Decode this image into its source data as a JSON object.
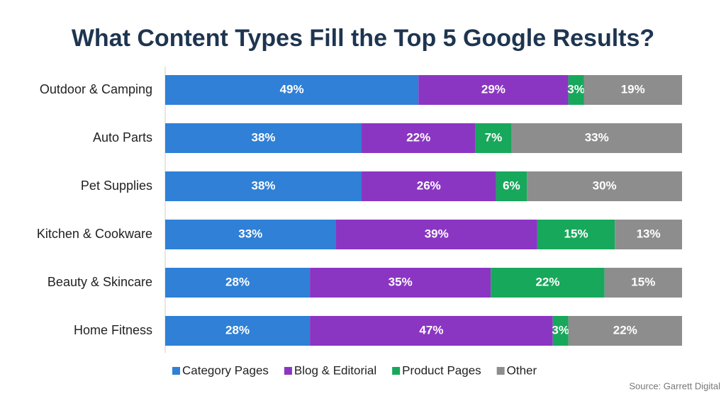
{
  "chart_data": {
    "type": "stacked-bar",
    "orientation": "horizontal",
    "title": "What Content Types Fill the Top 5 Google Results?",
    "categories": [
      "Outdoor & Camping",
      "Auto Parts",
      "Pet Supplies",
      "Kitchen & Cookware",
      "Beauty & Skincare",
      "Home Fitness"
    ],
    "xlim": [
      0,
      100
    ],
    "series": [
      {
        "name": "Category Pages",
        "color": "#2f80d6",
        "values": [
          49,
          38,
          38,
          33,
          28,
          28
        ],
        "value_labels": [
          "49%",
          "38%",
          "38%",
          "33%",
          "28%",
          "28%"
        ]
      },
      {
        "name": "Blog & Editorial",
        "color": "#8a36c2",
        "values": [
          29,
          22,
          26,
          39,
          35,
          47
        ],
        "value_labels": [
          "29%",
          "22%",
          "26%",
          "39%",
          "35%",
          "47%"
        ]
      },
      {
        "name": "Product Pages",
        "color": "#17a85b",
        "values": [
          3,
          7,
          6,
          15,
          22,
          3
        ],
        "value_labels": [
          "3%",
          "7%",
          "6%",
          "15%",
          "22%",
          "3%"
        ]
      },
      {
        "name": "Other",
        "color": "#8d8d8d",
        "values": [
          19,
          33,
          30,
          13,
          15,
          22
        ],
        "value_labels": [
          "19%",
          "33%",
          "30%",
          "13%",
          "15%",
          "22%"
        ]
      }
    ],
    "legend": "bottom",
    "source": "Source: Garrett Digital"
  }
}
